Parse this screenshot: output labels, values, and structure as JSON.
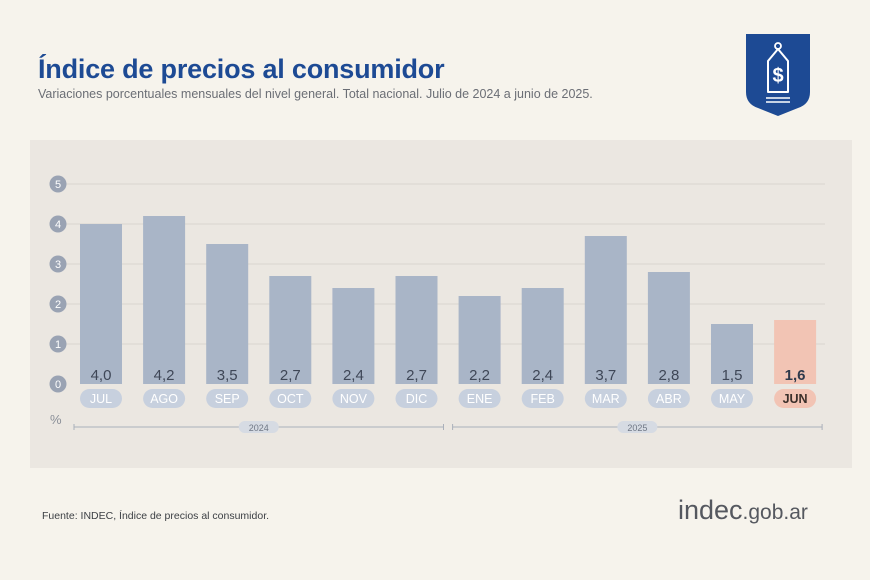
{
  "header": {
    "title": "Índice de precios al consumidor",
    "subtitle": "Variaciones porcentuales mensuales del nivel general. Total nacional. Julio de 2024 a junio de 2025."
  },
  "footer": {
    "source": "Fuente: INDEC, Índice de precios al consumidor.",
    "logo_main": "indec",
    "logo_domain": ".gob.ar"
  },
  "colors": {
    "title": "#1d4a94",
    "bar": "#a9b5c7",
    "bar_highlight": "#f2c4b4",
    "month_pill": "#c7d0de",
    "month_pill_highlight": "#f2c4b4",
    "axis_circle": "#9aa3b3"
  },
  "icons": {
    "badge": "price-tag-dollar-icon"
  },
  "chart_data": {
    "type": "bar",
    "title": "Índice de precios al consumidor",
    "ylabel": "%",
    "ylim": [
      0,
      5
    ],
    "yticks": [
      "0",
      "1",
      "2",
      "3",
      "4",
      "5"
    ],
    "categories": [
      "JUL",
      "AGO",
      "SEP",
      "OCT",
      "NOV",
      "DIC",
      "ENE",
      "FEB",
      "MAR",
      "ABR",
      "MAY",
      "JUN"
    ],
    "values": [
      4.0,
      4.2,
      3.5,
      2.7,
      2.4,
      2.7,
      2.2,
      2.4,
      3.7,
      2.8,
      1.5,
      1.6
    ],
    "value_labels": [
      "4,0",
      "4,2",
      "3,5",
      "2,7",
      "2,4",
      "2,7",
      "2,2",
      "2,4",
      "3,7",
      "2,8",
      "1,5",
      "1,6"
    ],
    "highlight_index": 11,
    "groups": [
      {
        "label": "2024",
        "start": 0,
        "end": 5
      },
      {
        "label": "2025",
        "start": 6,
        "end": 11
      }
    ],
    "grid": true
  }
}
